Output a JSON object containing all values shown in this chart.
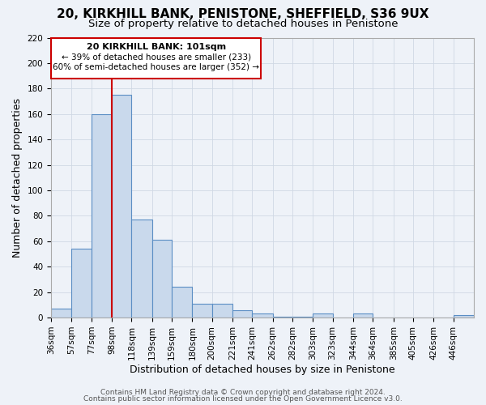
{
  "title": "20, KIRKHILL BANK, PENISTONE, SHEFFIELD, S36 9UX",
  "subtitle": "Size of property relative to detached houses in Penistone",
  "xlabel": "Distribution of detached houses by size in Penistone",
  "ylabel": "Number of detached properties",
  "bar_color": "#c9d9ec",
  "bar_edge_color": "#5b8ec4",
  "grid_color": "#d0d8e4",
  "bg_color": "#eef2f8",
  "plot_bg_color": "#eef2f8",
  "bin_labels": [
    "36sqm",
    "57sqm",
    "77sqm",
    "98sqm",
    "118sqm",
    "139sqm",
    "159sqm",
    "180sqm",
    "200sqm",
    "221sqm",
    "241sqm",
    "262sqm",
    "282sqm",
    "303sqm",
    "323sqm",
    "344sqm",
    "364sqm",
    "385sqm",
    "405sqm",
    "426sqm",
    "446sqm"
  ],
  "bar_values": [
    7,
    54,
    160,
    175,
    77,
    61,
    24,
    11,
    11,
    6,
    3,
    1,
    1,
    3,
    0,
    3,
    0,
    0,
    0,
    0,
    2
  ],
  "bin_edges": [
    36,
    57,
    77,
    98,
    118,
    139,
    159,
    180,
    200,
    221,
    241,
    262,
    282,
    303,
    323,
    344,
    364,
    385,
    405,
    426,
    446,
    467
  ],
  "red_line_x": 98,
  "ylim": [
    0,
    220
  ],
  "yticks": [
    0,
    20,
    40,
    60,
    80,
    100,
    120,
    140,
    160,
    180,
    200,
    220
  ],
  "annotation_title": "20 KIRKHILL BANK: 101sqm",
  "annotation_line1": "← 39% of detached houses are smaller (233)",
  "annotation_line2": "60% of semi-detached houses are larger (352) →",
  "annotation_box_facecolor": "#ffffff",
  "annotation_box_edgecolor": "#cc0000",
  "footer_line1": "Contains HM Land Registry data © Crown copyright and database right 2024.",
  "footer_line2": "Contains public sector information licensed under the Open Government Licence v3.0.",
  "title_fontsize": 11,
  "subtitle_fontsize": 9.5,
  "xlabel_fontsize": 9,
  "ylabel_fontsize": 9,
  "tick_fontsize": 7.5,
  "footer_fontsize": 6.5
}
